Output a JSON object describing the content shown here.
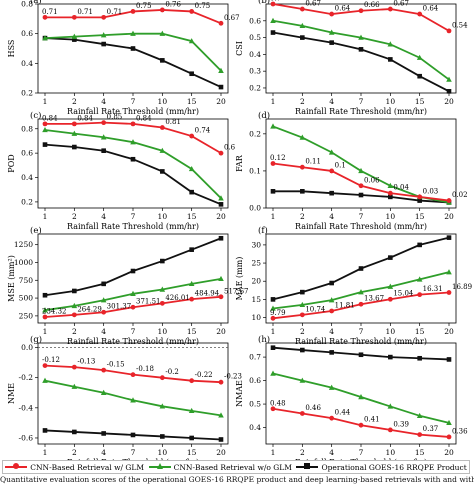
{
  "colors": {
    "red": "#e8242a",
    "green": "#2f9e2a",
    "black": "#111111"
  },
  "legend": {
    "red": "CNN-Based Retrieval w/ GLM",
    "green": "CNN-Based Retrieval w/o GLM",
    "black": "Operational GOES-16 RRQPE Product"
  },
  "caption": "Quantitative evaluation scores of the operational GOES-16 RRQPE product and deep learning-based retrievals with and without using",
  "chart_data": [
    {
      "type": "line",
      "panel": "(a)",
      "ylabel": "HSS",
      "xlabel": "Rainfall Rate Threshold (mm/hr)",
      "categories": [
        "1",
        "2",
        "4",
        "7",
        "10",
        "15",
        "20"
      ],
      "ylim": [
        0.2,
        0.8
      ],
      "yticks": [
        "0.2",
        "0.4",
        "0.6",
        "0.8"
      ],
      "series": [
        {
          "color": "red",
          "values": [
            0.71,
            0.71,
            0.71,
            0.75,
            0.76,
            0.75,
            0.67
          ],
          "labels": [
            "0.71",
            "0.71",
            "0.71",
            "0.75",
            "0.76",
            "0.75",
            "0.67"
          ]
        },
        {
          "color": "green",
          "values": [
            0.57,
            0.58,
            0.59,
            0.6,
            0.6,
            0.55,
            0.35
          ]
        },
        {
          "color": "black",
          "values": [
            0.57,
            0.56,
            0.53,
            0.5,
            0.42,
            0.33,
            0.24
          ]
        }
      ]
    },
    {
      "type": "line",
      "panel": "(b)",
      "ylabel": "CSI",
      "xlabel": "Rainfall Rate Threshold (mm/hr)",
      "categories": [
        "1",
        "2",
        "4",
        "7",
        "10",
        "15",
        "20"
      ],
      "ylim": [
        0.17,
        0.7
      ],
      "yticks": [
        "0.2",
        "0.3",
        "0.4",
        "0.5",
        "0.6"
      ],
      "series": [
        {
          "color": "red",
          "values": [
            0.7,
            0.67,
            0.64,
            0.66,
            0.67,
            0.64,
            0.54
          ],
          "labels": [
            "0.7",
            "0.67",
            "0.64",
            "0.66",
            "0.67",
            "0.64",
            "0.54"
          ]
        },
        {
          "color": "green",
          "values": [
            0.6,
            0.57,
            0.53,
            0.5,
            0.46,
            0.38,
            0.25
          ]
        },
        {
          "color": "black",
          "values": [
            0.53,
            0.5,
            0.47,
            0.43,
            0.37,
            0.27,
            0.18
          ]
        }
      ]
    },
    {
      "type": "line",
      "panel": "(c)",
      "ylabel": "POD",
      "xlabel": "Rainfall Rate Threshold (mm/hr)",
      "categories": [
        "1",
        "2",
        "4",
        "7",
        "10",
        "15",
        "20"
      ],
      "ylim": [
        0.15,
        0.88
      ],
      "yticks": [
        "0.2",
        "0.4",
        "0.6",
        "0.8"
      ],
      "series": [
        {
          "color": "red",
          "values": [
            0.84,
            0.84,
            0.85,
            0.84,
            0.81,
            0.74,
            0.6
          ],
          "labels": [
            "0.84",
            "0.84",
            "0.85",
            "0.84",
            "0.81",
            "0.74",
            "0.6"
          ]
        },
        {
          "color": "green",
          "values": [
            0.79,
            0.76,
            0.73,
            0.69,
            0.62,
            0.47,
            0.23
          ]
        },
        {
          "color": "black",
          "values": [
            0.67,
            0.65,
            0.62,
            0.55,
            0.45,
            0.28,
            0.18
          ]
        }
      ]
    },
    {
      "type": "line",
      "panel": "(d)",
      "ylabel": "FAR",
      "xlabel": "Rainfall Rate Threshold (mm/hr)",
      "categories": [
        "1",
        "2",
        "4",
        "7",
        "10",
        "15",
        "20"
      ],
      "ylim": [
        0.0,
        0.24
      ],
      "yticks": [
        "0.0",
        "0.1",
        "0.2"
      ],
      "series": [
        {
          "color": "red",
          "values": [
            0.12,
            0.11,
            0.1,
            0.06,
            0.04,
            0.03,
            0.02
          ],
          "labels": [
            "0.12",
            "0.11",
            "0.1",
            "0.06",
            "0.04",
            "0.03",
            "0.02"
          ]
        },
        {
          "color": "green",
          "values": [
            0.22,
            0.19,
            0.15,
            0.1,
            0.06,
            0.03,
            0.015
          ]
        },
        {
          "color": "black",
          "values": [
            0.045,
            0.045,
            0.04,
            0.035,
            0.03,
            0.02,
            0.015
          ]
        }
      ]
    },
    {
      "type": "line",
      "panel": "(e)",
      "ylabel": "MSE (mm²)",
      "xlabel": "Rainfall Rate Threshold (mm/hr)",
      "categories": [
        "1",
        "2",
        "4",
        "7",
        "10",
        "15",
        "20"
      ],
      "ylim": [
        150,
        1400
      ],
      "yticks": [
        "250",
        "500",
        "750",
        "1000",
        "1250"
      ],
      "series": [
        {
          "color": "red",
          "values": [
            234.32,
            264.29,
            301.37,
            371.51,
            426.01,
            484.94,
            517.67
          ],
          "labels": [
            "234.32",
            "264.29",
            "301.37",
            "371.51",
            "426.01",
            "484.94",
            "517.67"
          ]
        },
        {
          "color": "green",
          "values": [
            330,
            390,
            470,
            560,
            620,
            700,
            770
          ]
        },
        {
          "color": "black",
          "values": [
            540,
            600,
            700,
            880,
            1020,
            1180,
            1340
          ]
        }
      ]
    },
    {
      "type": "line",
      "panel": "(f)",
      "ylabel": "MAE (mm)",
      "xlabel": "Rainfall Rate Threshold (mm/hr)",
      "categories": [
        "1",
        "2",
        "4",
        "7",
        "10",
        "15",
        "20"
      ],
      "ylim": [
        8.5,
        33
      ],
      "yticks": [
        "10",
        "15",
        "20",
        "25",
        "30"
      ],
      "series": [
        {
          "color": "red",
          "values": [
            9.79,
            10.74,
            11.81,
            13.67,
            15.04,
            16.31,
            16.89
          ],
          "labels": [
            "9.79",
            "10.74",
            "11.81",
            "13.67",
            "15.04",
            "16.31",
            "16.89"
          ]
        },
        {
          "color": "green",
          "values": [
            12.5,
            13.5,
            14.8,
            17.0,
            18.5,
            20.5,
            22.5
          ]
        },
        {
          "color": "black",
          "values": [
            15.0,
            17.0,
            19.5,
            23.5,
            26.5,
            30.0,
            32.0
          ]
        }
      ]
    },
    {
      "type": "line",
      "panel": "(g)",
      "ylabel": "NME",
      "xlabel": "Rainfall Rate Threshold (mm/hr)",
      "categories": [
        "1",
        "2",
        "4",
        "7",
        "10",
        "15",
        "20"
      ],
      "ylim": [
        -0.64,
        0.03
      ],
      "yticks": [
        "-0.6",
        "-0.4",
        "-0.2",
        "0.0"
      ],
      "reference_line": 0.0,
      "series": [
        {
          "color": "red",
          "values": [
            -0.12,
            -0.13,
            -0.15,
            -0.18,
            -0.2,
            -0.22,
            -0.23
          ],
          "labels": [
            "-0.12",
            "-0.13",
            "-0.15",
            "-0.18",
            "-0.2",
            "-0.22",
            "-0.23"
          ]
        },
        {
          "color": "green",
          "values": [
            -0.22,
            -0.26,
            -0.3,
            -0.35,
            -0.39,
            -0.42,
            -0.45
          ]
        },
        {
          "color": "black",
          "values": [
            -0.55,
            -0.56,
            -0.57,
            -0.58,
            -0.59,
            -0.6,
            -0.61
          ]
        }
      ]
    },
    {
      "type": "line",
      "panel": "(h)",
      "ylabel": "NMAE",
      "xlabel": "Rainfall Rate Threshold (mm/hr)",
      "categories": [
        "1",
        "2",
        "4",
        "7",
        "10",
        "15",
        "20"
      ],
      "ylim": [
        0.33,
        0.76
      ],
      "yticks": [
        "0.4",
        "0.5",
        "0.6",
        "0.7"
      ],
      "series": [
        {
          "color": "red",
          "values": [
            0.48,
            0.46,
            0.44,
            0.41,
            0.39,
            0.37,
            0.36
          ],
          "labels": [
            "0.48",
            "0.46",
            "0.44",
            "0.41",
            "0.39",
            "0.37",
            "0.36"
          ]
        },
        {
          "color": "green",
          "values": [
            0.63,
            0.6,
            0.57,
            0.53,
            0.49,
            0.45,
            0.42
          ]
        },
        {
          "color": "black",
          "values": [
            0.74,
            0.73,
            0.72,
            0.71,
            0.7,
            0.695,
            0.69
          ]
        }
      ]
    }
  ]
}
